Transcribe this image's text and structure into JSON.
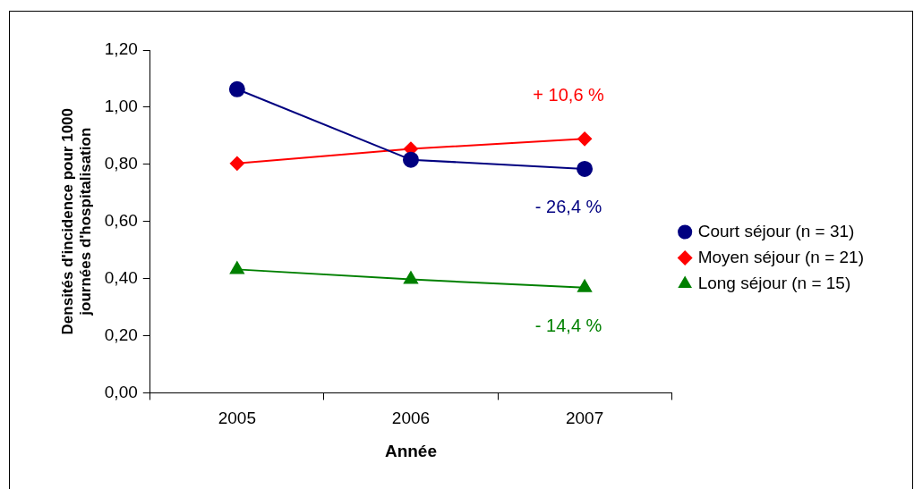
{
  "chart_data": {
    "type": "line",
    "xlabel": "Année",
    "ylabel": "Densités d'incidence pour 1000 journées d'hospitalisation",
    "categories": [
      "2005",
      "2006",
      "2007"
    ],
    "series": [
      {
        "name": "Court séjour (n = 31)",
        "color": "#000080",
        "marker": "circle",
        "values": [
          1.063,
          0.816,
          0.784
        ]
      },
      {
        "name": "Moyen séjour (n = 21)",
        "color": "#ff0000",
        "marker": "diamond",
        "values": [
          0.803,
          0.854,
          0.889
        ]
      },
      {
        "name": "Long séjour (n = 15)",
        "color": "#008000",
        "marker": "triangle",
        "values": [
          0.432,
          0.397,
          0.368
        ]
      }
    ],
    "ylim": [
      0,
      1.2
    ],
    "yticks": [
      {
        "value": 0,
        "label": "0,00"
      },
      {
        "value": 0.2,
        "label": "0,20"
      },
      {
        "value": 0.4,
        "label": "0,40"
      },
      {
        "value": 0.6,
        "label": "0,60"
      },
      {
        "value": 0.8,
        "label": "0,80"
      },
      {
        "value": 1.0,
        "label": "1,00"
      },
      {
        "value": 1.2,
        "label": "1,20"
      }
    ],
    "annotations": [
      "- 26,4 %",
      "+ 10,6 %",
      "- 14,4 %"
    ],
    "grid": false,
    "legend": "right",
    "line_style": "solid"
  }
}
